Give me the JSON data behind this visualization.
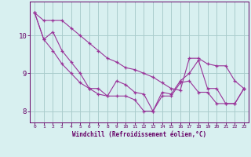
{
  "x": [
    0,
    1,
    2,
    3,
    4,
    5,
    6,
    7,
    8,
    9,
    10,
    11,
    12,
    13,
    14,
    15,
    16,
    17,
    18,
    19,
    20,
    21,
    22,
    23
  ],
  "main_line": [
    10.6,
    9.9,
    10.1,
    9.6,
    9.3,
    9.0,
    8.6,
    8.6,
    8.4,
    8.8,
    8.7,
    8.5,
    8.45,
    8.0,
    8.5,
    8.45,
    8.8,
    9.0,
    9.35,
    8.6,
    8.6,
    8.2,
    8.2,
    8.6
  ],
  "max_line": [
    10.6,
    10.4,
    10.4,
    10.4,
    10.2,
    10.0,
    9.8,
    9.6,
    9.4,
    9.3,
    9.15,
    9.1,
    9.0,
    8.9,
    8.75,
    8.6,
    8.55,
    9.4,
    9.4,
    9.25,
    9.2,
    9.2,
    8.8,
    8.6
  ],
  "min_line": [
    10.6,
    9.9,
    9.6,
    9.25,
    9.0,
    8.75,
    8.6,
    8.45,
    8.4,
    8.4,
    8.4,
    8.3,
    8.0,
    8.0,
    8.4,
    8.4,
    8.75,
    8.8,
    8.5,
    8.5,
    8.2,
    8.2,
    8.2,
    8.6
  ],
  "color": "#993399",
  "bg_color": "#d8f0f0",
  "grid_color": "#aacccc",
  "axis_color": "#660066",
  "xlabel": "Windchill (Refroidissement éolien,°C)",
  "ylim": [
    7.7,
    10.9
  ],
  "xlim": [
    -0.5,
    23.5
  ],
  "yticks": [
    8,
    9,
    10
  ],
  "xticks": [
    0,
    1,
    2,
    3,
    4,
    5,
    6,
    7,
    8,
    9,
    10,
    11,
    12,
    13,
    14,
    15,
    16,
    17,
    18,
    19,
    20,
    21,
    22,
    23
  ]
}
